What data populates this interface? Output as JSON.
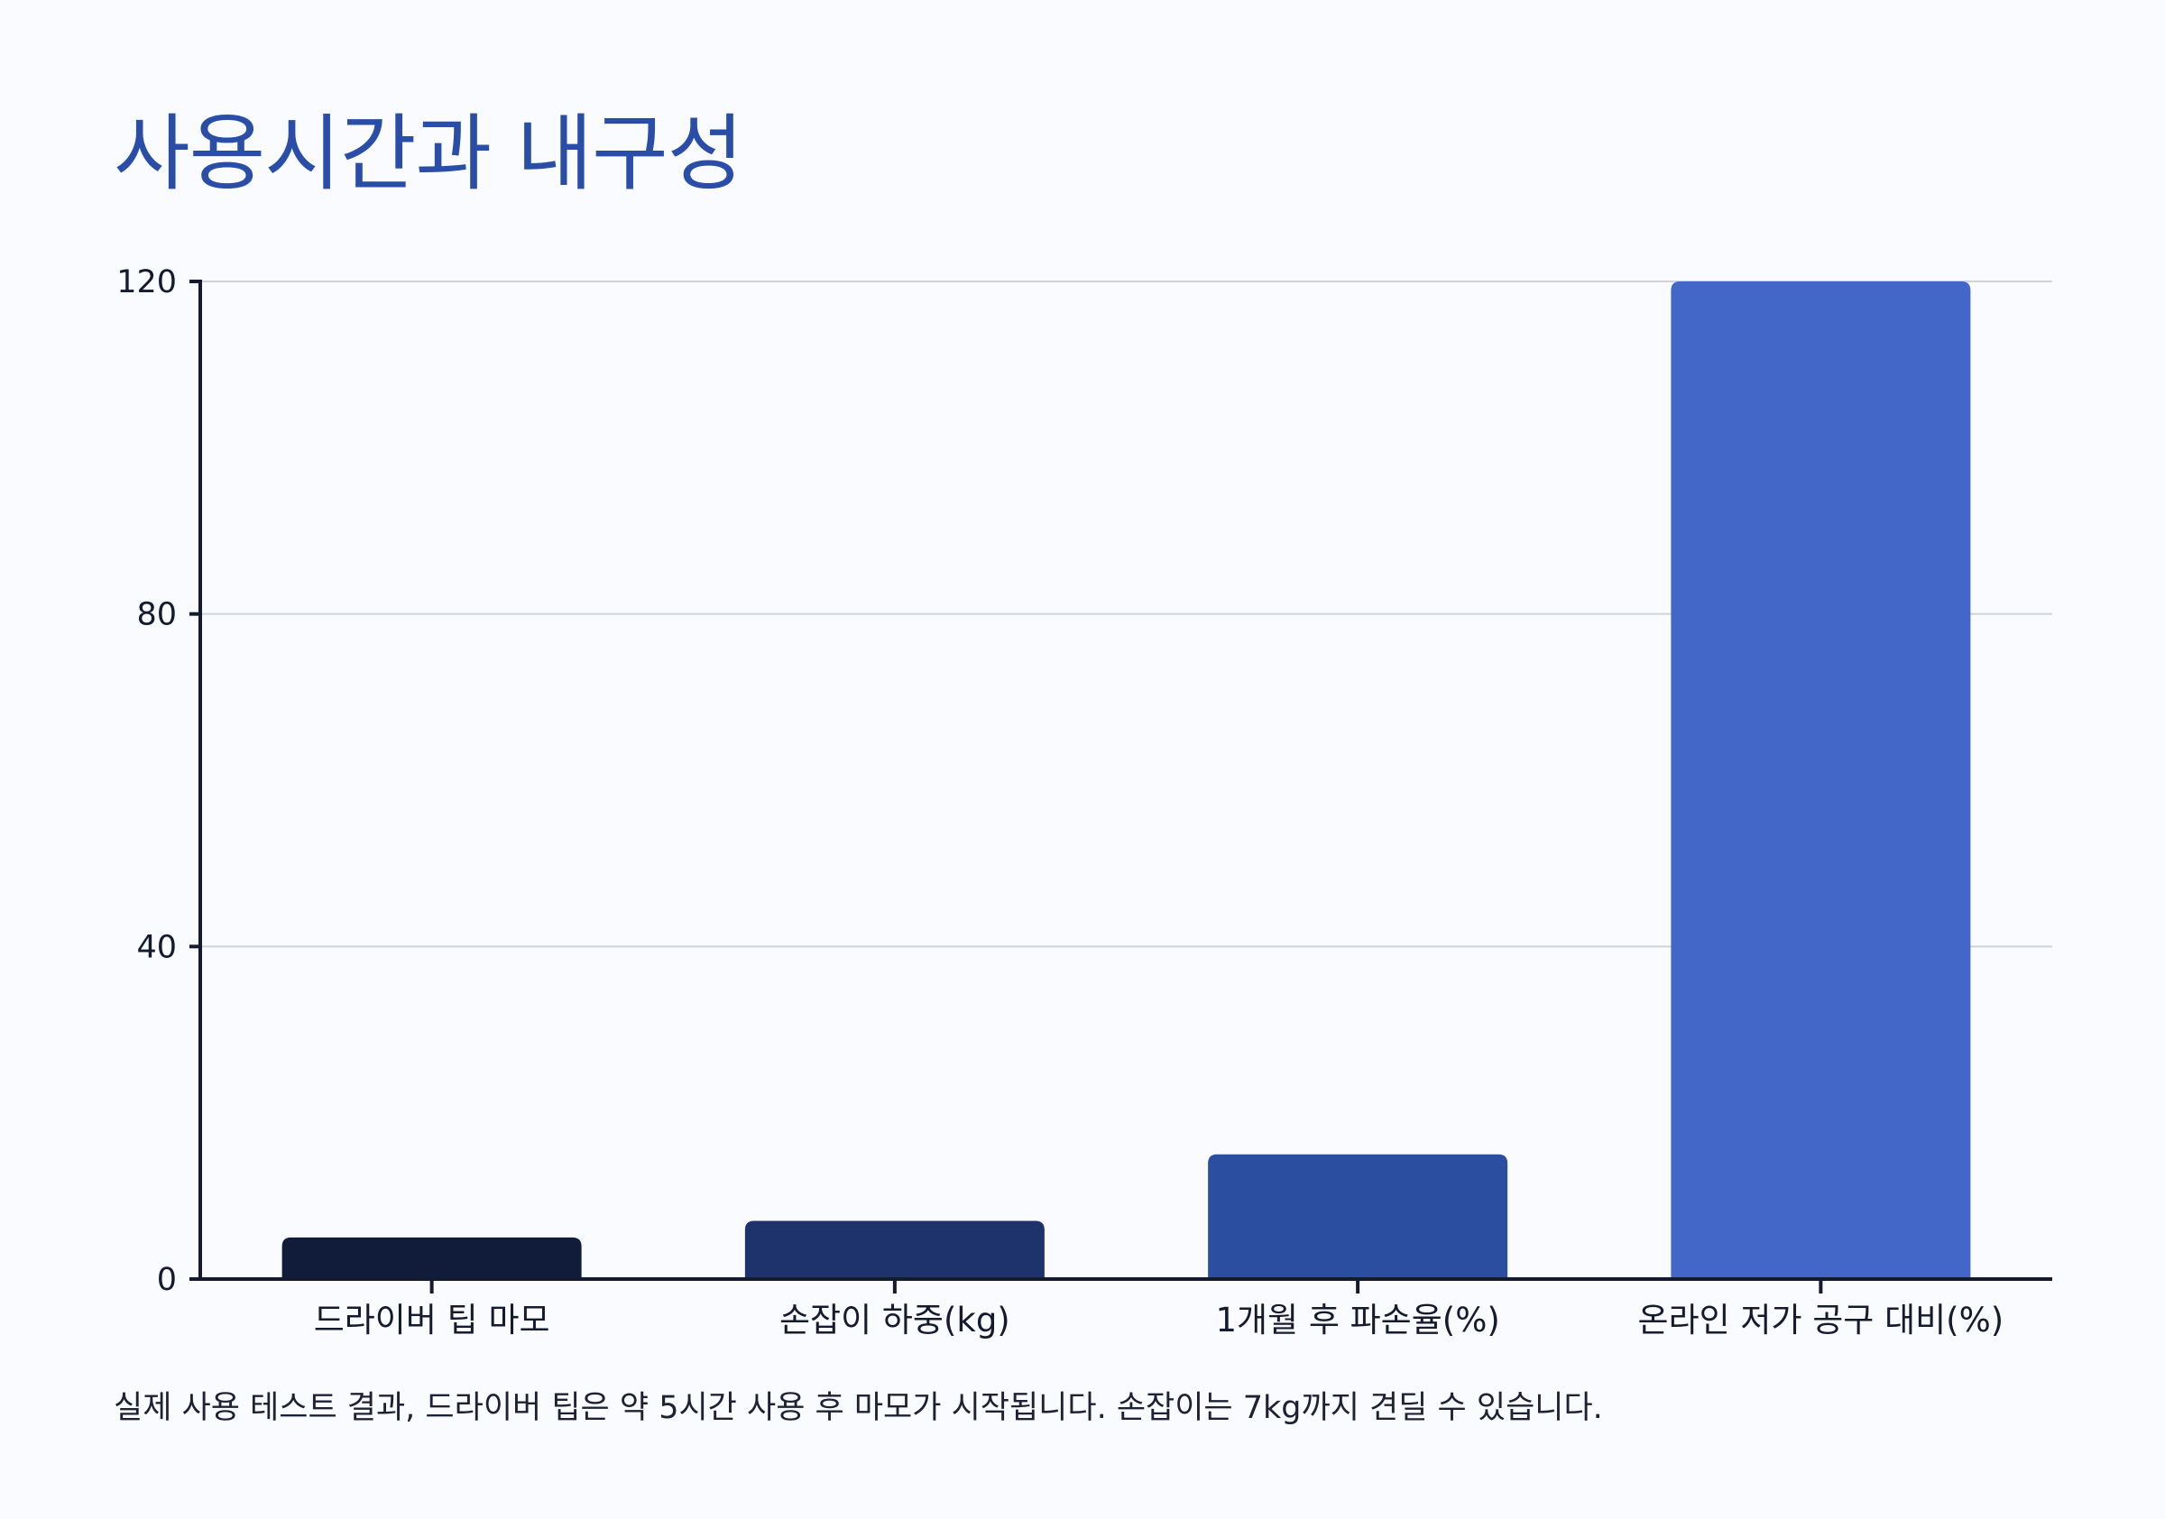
{
  "title": "사용시간과 내구성",
  "caption": "실제 사용 테스트 결과, 드라이버 팁은 약 5시간 사용 후 마모가 시작됩니다. 손잡이는 7kg까지 견딜 수 있습니다.",
  "chart_data": {
    "type": "bar",
    "title": "사용시간과 내구성",
    "categories": [
      "드라이버 팁 마모",
      "손잡이 하중(kg)",
      "1개월 후 파손율(%)",
      "온라인 저가 공구 대비(%)"
    ],
    "values": [
      5,
      7,
      15,
      120
    ],
    "colors": [
      "#111c3a",
      "#1e326c",
      "#2c4ea0",
      "#4267c9"
    ],
    "ylim": [
      0,
      120
    ],
    "yticks": [
      0,
      40,
      80,
      120
    ],
    "xlabel": "",
    "ylabel": "",
    "grid": true,
    "legend": "none",
    "gridline_color": "#cfd3da",
    "axis_color": "#141b2e"
  }
}
